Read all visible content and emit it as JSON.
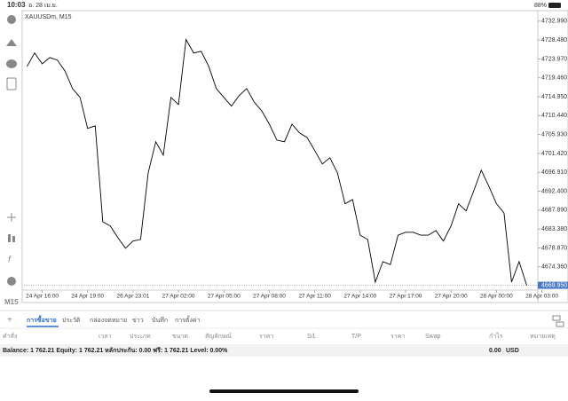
{
  "status_bar": {
    "time": "10:03",
    "date": "อ. 28 เม.ย.",
    "battery": "88%"
  },
  "chart_data": {
    "type": "line",
    "title": "XAUUSDm, M15",
    "categories": [
      null,
      null,
      "24 Apr 16:00",
      null,
      null,
      null,
      null,
      null,
      "24 Apr 19:00",
      null,
      null,
      null,
      null,
      null,
      "26 Apr 23:01",
      null,
      null,
      null,
      null,
      null,
      "27 Apr 02:00",
      null,
      null,
      null,
      null,
      null,
      "27 Apr 05:00",
      null,
      null,
      null,
      null,
      null,
      "27 Apr 08:00",
      null,
      null,
      null,
      null,
      null,
      "27 Apr 11:00",
      null,
      null,
      null,
      null,
      null,
      "27 Apr 14:00",
      null,
      null,
      null,
      null,
      null,
      "27 Apr 17:00",
      null,
      null,
      null,
      null,
      null,
      "27 Apr 20:00",
      null,
      null,
      null,
      null,
      null,
      "28 Apr 00:00",
      null,
      null,
      null,
      null,
      null,
      "28 Apr 03:00"
    ],
    "series": [
      {
        "name": "XAUUSDm",
        "color": "#000000",
        "values": [
          4722.2,
          4725.4,
          4722.8,
          4724.3,
          4723.7,
          4721.1,
          4716.9,
          4714.8,
          4707.4,
          4708.0,
          4685.1,
          4684.1,
          4681.3,
          4678.8,
          4680.5,
          4680.9,
          4696.8,
          4704.2,
          4701.0,
          4714.8,
          4713.1,
          4728.6,
          4725.4,
          4725.8,
          4722.2,
          4716.9,
          4714.8,
          4712.7,
          4715.2,
          4716.9,
          4713.7,
          4711.6,
          4708.4,
          4704.6,
          4704.2,
          4708.4,
          4706.3,
          4705.2,
          4702.1,
          4698.9,
          4700.4,
          4696.8,
          4689.4,
          4690.4,
          4681.9,
          4680.9,
          4670.7,
          4675.6,
          4674.9,
          4681.9,
          4682.6,
          4682.6,
          4681.9,
          4681.9,
          4683.0,
          4680.5,
          4684.1,
          4689.4,
          4687.7,
          4692.5,
          4697.4,
          4693.6,
          4689.4,
          4687.2,
          4670.7,
          4675.6,
          4669.9,
          null,
          null
        ]
      }
    ],
    "ylim": [
      4668.8,
      4735.5
    ],
    "yticks": [
      {
        "value": 4732.99,
        "label": "4732.990"
      },
      {
        "value": 4728.48,
        "label": "4728.480"
      },
      {
        "value": 4723.97,
        "label": "4723.970"
      },
      {
        "value": 4719.46,
        "label": "4719.460"
      },
      {
        "value": 4714.95,
        "label": "4714.950"
      },
      {
        "value": 4710.44,
        "label": "4710.440"
      },
      {
        "value": 4705.93,
        "label": "4705.930"
      },
      {
        "value": 4701.42,
        "label": "4701.420"
      },
      {
        "value": 4696.91,
        "label": "4696.910"
      },
      {
        "value": 4692.4,
        "label": "4692.400"
      },
      {
        "value": 4687.89,
        "label": "4687.890"
      },
      {
        "value": 4683.38,
        "label": "4683.380"
      },
      {
        "value": 4678.87,
        "label": "4678.870"
      },
      {
        "value": 4674.36,
        "label": "4674.360"
      }
    ],
    "current_price": {
      "value": 4669.95,
      "label": "4669.950"
    },
    "grid": false
  },
  "toolbar": {
    "timeframe": "M15"
  },
  "tabs": [
    "การซื้อขาย",
    "ประวัติ",
    "กล่องจดหมาย",
    "ข่าว",
    "บันทึก",
    "การตั้งค่า"
  ],
  "table": {
    "columns": [
      "คำสั่ง",
      "เวลา",
      "ประเภท",
      "ขนาด",
      "สัญลักษณ์",
      "ราคา",
      "S/L",
      "T/P",
      "ราคา",
      "Swap",
      "กำไร",
      "หมายเหตุ"
    ]
  },
  "balance": {
    "text": "Balance: 1 762.21 Equity: 1 762.21 หลักประกัน: 0.00 ฟรี: 1 762.21 Level: 0.00%",
    "profit": "0.00",
    "currency": "USD"
  }
}
